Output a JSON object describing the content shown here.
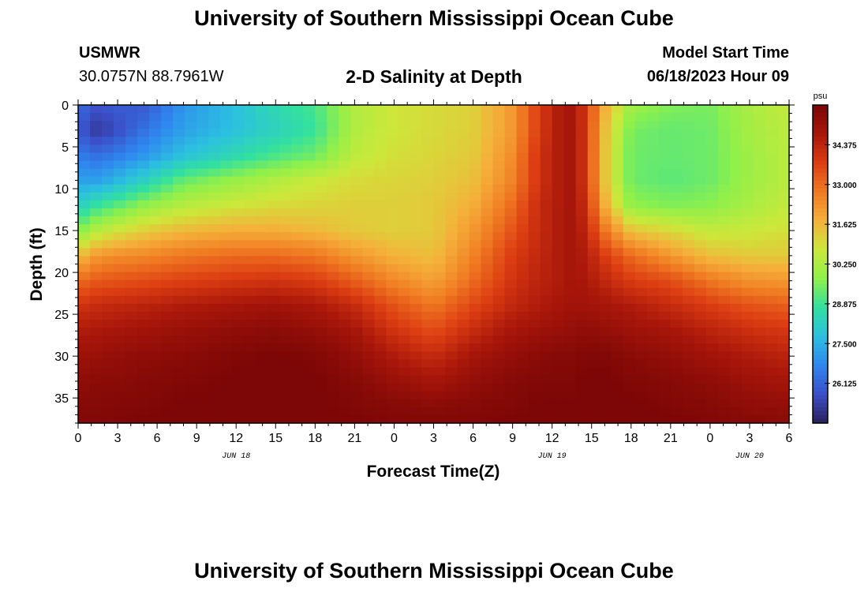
{
  "header": {
    "title": "University of Southern Mississippi Ocean Cube",
    "station": "USMWR",
    "location": "30.0757N  88.7961W",
    "subtitle": "2-D Salinity at Depth",
    "model_start_label": "Model Start Time",
    "model_start_value": "06/18/2023 Hour 09"
  },
  "footer": {
    "title": "University of Southern Mississippi Ocean Cube"
  },
  "chart_data": {
    "type": "heatmap",
    "title": "2-D Salinity at Depth",
    "xlabel": "Forecast Time(Z)",
    "ylabel": "Depth (ft)",
    "xlim": [
      0,
      54
    ],
    "ylim": [
      38,
      0
    ],
    "x_tick_labels": [
      "0",
      "3",
      "6",
      "9",
      "12",
      "15",
      "18",
      "21",
      "0",
      "3",
      "6",
      "9",
      "12",
      "15",
      "18",
      "21",
      "0",
      "3",
      "6"
    ],
    "y_ticks": [
      0,
      5,
      10,
      15,
      20,
      25,
      30,
      35
    ],
    "date_labels": [
      {
        "text": "JUN 18",
        "x": 12
      },
      {
        "text": "JUN 19",
        "x": 36
      },
      {
        "text": "JUN 20",
        "x": 51
      }
    ],
    "colorbar": {
      "unit": "psu",
      "min": 24.75,
      "max": 35.75,
      "ticks": [
        26.125,
        27.5,
        28.875,
        30.25,
        31.625,
        33.0,
        34.375
      ],
      "tick_labels": [
        "26.125",
        "27.500",
        "28.875",
        "30.250",
        "31.625",
        "33.000",
        "34.375"
      ],
      "stops": [
        "#2a1f5c",
        "#3b4fc8",
        "#2f86ef",
        "#2bc0e0",
        "#32e0a0",
        "#8ff04a",
        "#cce83a",
        "#f5b03a",
        "#f07a22",
        "#dc3d12",
        "#a8160a",
        "#7a0606"
      ]
    },
    "x_nodes": [
      0,
      1.5,
      3,
      5,
      8,
      12,
      15,
      18,
      21,
      24,
      27,
      30,
      33,
      35,
      36.5,
      37.5,
      38.5,
      40,
      42,
      45,
      48,
      51,
      54
    ],
    "y_nodes": [
      0,
      3,
      6,
      9,
      12,
      15,
      18,
      21,
      24,
      27,
      30,
      33,
      36,
      38
    ],
    "salinity": [
      [
        26.3,
        25.8,
        26.0,
        25.9,
        27.0,
        27.8,
        28.5,
        29.0,
        30.3,
        30.8,
        31.0,
        31.2,
        32.2,
        33.8,
        34.6,
        34.8,
        34.0,
        31.8,
        30.0,
        29.6,
        29.5,
        30.2,
        30.6
      ],
      [
        25.9,
        25.3,
        25.7,
        26.4,
        27.2,
        27.8,
        28.3,
        28.8,
        30.3,
        30.8,
        31.0,
        31.2,
        32.2,
        33.8,
        34.6,
        34.8,
        34.0,
        31.5,
        29.5,
        29.3,
        29.4,
        30.1,
        30.5
      ],
      [
        26.6,
        26.3,
        26.6,
        27.0,
        27.8,
        28.5,
        29.0,
        29.4,
        30.5,
        30.9,
        31.1,
        31.3,
        32.4,
        34.0,
        34.6,
        34.8,
        34.0,
        31.4,
        29.4,
        29.3,
        29.4,
        30.0,
        30.5
      ],
      [
        27.2,
        27.2,
        27.6,
        28.2,
        29.3,
        29.9,
        30.3,
        30.7,
        31.0,
        31.1,
        31.2,
        31.5,
        32.6,
        34.0,
        34.6,
        34.8,
        34.0,
        31.4,
        29.4,
        29.2,
        29.4,
        30.0,
        30.5
      ],
      [
        28.2,
        28.8,
        29.2,
        29.8,
        30.4,
        30.8,
        31.0,
        31.1,
        31.2,
        31.2,
        31.3,
        31.8,
        33.0,
        34.2,
        34.6,
        34.8,
        34.2,
        31.8,
        29.8,
        29.6,
        29.7,
        30.2,
        30.6
      ],
      [
        29.6,
        30.4,
        30.8,
        31.2,
        31.6,
        31.8,
        31.8,
        31.6,
        31.3,
        31.2,
        31.3,
        32.2,
        33.4,
        34.2,
        34.6,
        34.8,
        34.4,
        32.8,
        31.4,
        31.0,
        30.6,
        30.7,
        30.9
      ],
      [
        31.5,
        32.2,
        32.4,
        32.5,
        32.8,
        33.0,
        33.0,
        32.8,
        32.2,
        31.7,
        31.5,
        32.6,
        33.8,
        34.3,
        34.6,
        34.8,
        34.6,
        33.8,
        33.0,
        32.2,
        31.5,
        31.3,
        31.3
      ],
      [
        33.0,
        33.3,
        33.4,
        33.5,
        33.7,
        33.9,
        34.0,
        33.8,
        33.2,
        32.5,
        32.0,
        33.0,
        34.0,
        34.4,
        34.6,
        34.8,
        34.7,
        34.3,
        33.8,
        33.5,
        32.8,
        32.3,
        32.2
      ],
      [
        34.0,
        34.2,
        34.3,
        34.4,
        34.6,
        34.8,
        34.9,
        34.7,
        34.2,
        33.4,
        32.8,
        33.6,
        34.3,
        34.6,
        34.8,
        34.9,
        34.9,
        34.8,
        34.6,
        34.2,
        33.8,
        33.4,
        33.2
      ],
      [
        34.6,
        34.7,
        34.8,
        34.9,
        35.1,
        35.3,
        35.4,
        35.2,
        34.8,
        34.0,
        33.5,
        34.2,
        34.8,
        35.0,
        35.1,
        35.2,
        35.3,
        35.2,
        35.0,
        34.8,
        34.4,
        34.1,
        33.9
      ],
      [
        35.0,
        35.1,
        35.2,
        35.3,
        35.4,
        35.6,
        35.7,
        35.6,
        35.2,
        34.6,
        34.2,
        34.8,
        35.2,
        35.4,
        35.5,
        35.5,
        35.6,
        35.6,
        35.4,
        35.2,
        34.9,
        34.6,
        34.4
      ],
      [
        35.3,
        35.4,
        35.4,
        35.5,
        35.6,
        35.7,
        35.7,
        35.7,
        35.5,
        35.1,
        34.8,
        35.2,
        35.5,
        35.6,
        35.6,
        35.6,
        35.7,
        35.7,
        35.6,
        35.5,
        35.3,
        35.0,
        34.8
      ],
      [
        35.5,
        35.5,
        35.6,
        35.6,
        35.7,
        35.7,
        35.7,
        35.7,
        35.6,
        35.5,
        35.4,
        35.5,
        35.6,
        35.7,
        35.7,
        35.7,
        35.7,
        35.7,
        35.7,
        35.6,
        35.5,
        35.3,
        35.2
      ],
      [
        35.6,
        35.6,
        35.6,
        35.7,
        35.7,
        35.7,
        35.7,
        35.7,
        35.7,
        35.6,
        35.6,
        35.6,
        35.7,
        35.7,
        35.7,
        35.7,
        35.7,
        35.7,
        35.7,
        35.7,
        35.6,
        35.5,
        35.4
      ]
    ]
  }
}
